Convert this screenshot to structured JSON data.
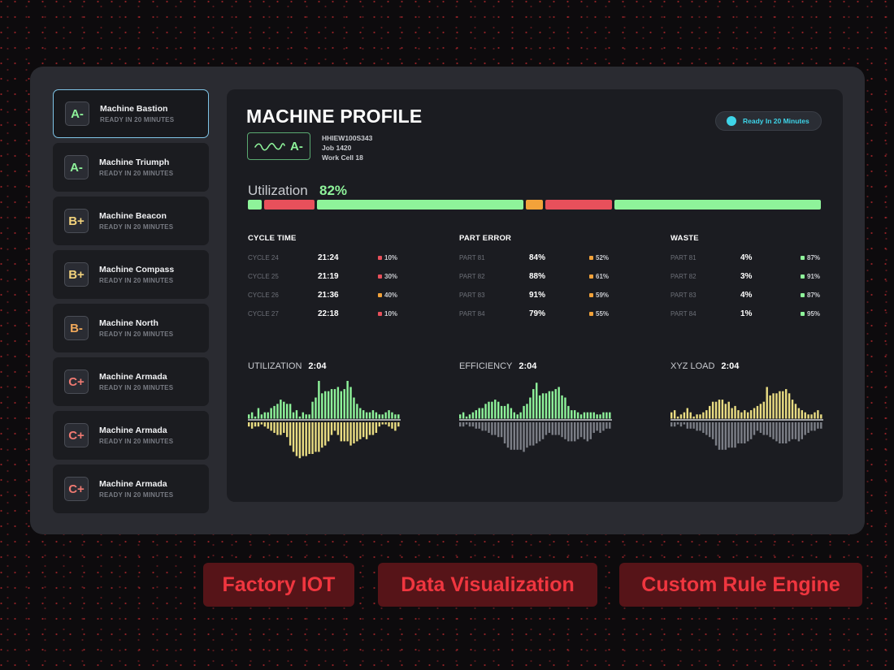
{
  "machines": [
    {
      "grade": "A-",
      "color": "#8ef39a",
      "name": "Machine Bastion",
      "status": "READY IN 20 MINUTES",
      "selected": true
    },
    {
      "grade": "A-",
      "color": "#8ef39a",
      "name": "Machine Triumph",
      "status": "READY IN 20 MINUTES"
    },
    {
      "grade": "B+",
      "color": "#f2d27c",
      "name": "Machine Beacon",
      "status": "READY IN 20 MINUTES"
    },
    {
      "grade": "B+",
      "color": "#f2d27c",
      "name": "Machine Compass",
      "status": "READY IN 20 MINUTES"
    },
    {
      "grade": "B-",
      "color": "#f0a85a",
      "name": "Machine North",
      "status": "READY IN 20 MINUTES"
    },
    {
      "grade": "C+",
      "color": "#f07a72",
      "name": "Machine Armada",
      "status": "READY IN 20 MINUTES"
    },
    {
      "grade": "C+",
      "color": "#f07a72",
      "name": "Machine Armada",
      "status": "READY IN 20 MINUTES"
    },
    {
      "grade": "C+",
      "color": "#f07a72",
      "name": "Machine Armada",
      "status": "READY IN 20 MINUTES"
    }
  ],
  "profile": {
    "title": "MACHINE PROFILE",
    "grade": "A-",
    "grade_color": "#8ef39a",
    "id": "HHIEW100S343",
    "job": "Job 1420",
    "cell": "Work Cell 18",
    "status": "Ready In 20 Minutes",
    "status_color": "#3ed4e8",
    "utilization_label": "Utilization",
    "utilization_value": "82%",
    "utilization_segments": [
      {
        "color": "green",
        "share": 2.5
      },
      {
        "color": "red",
        "share": 9
      },
      {
        "color": "green",
        "share": 37
      },
      {
        "color": "orange",
        "share": 3
      },
      {
        "color": "red",
        "share": 12
      },
      {
        "color": "green",
        "share": 37
      }
    ]
  },
  "colors": {
    "green": "#8ef39a",
    "red": "#e8505b",
    "orange": "#f2a23a",
    "yellow": "#e9dc82",
    "gray": "#7b7e86"
  },
  "stats": [
    {
      "title": "CYCLE TIME",
      "rows": [
        {
          "label": "CYCLE 24",
          "value": "21:24",
          "pct": "10%",
          "color": "red"
        },
        {
          "label": "CYCLE 25",
          "value": "21:19",
          "pct": "30%",
          "color": "red"
        },
        {
          "label": "CYCLE 26",
          "value": "21:36",
          "pct": "40%",
          "color": "orange"
        },
        {
          "label": "CYCLE 27",
          "value": "22:18",
          "pct": "10%",
          "color": "red"
        }
      ]
    },
    {
      "title": "PART ERROR",
      "rows": [
        {
          "label": "PART 81",
          "value": "84%",
          "pct": "52%",
          "color": "orange"
        },
        {
          "label": "PART 82",
          "value": "88%",
          "pct": "61%",
          "color": "orange"
        },
        {
          "label": "PART 83",
          "value": "91%",
          "pct": "59%",
          "color": "orange"
        },
        {
          "label": "PART 84",
          "value": "79%",
          "pct": "55%",
          "color": "orange"
        }
      ]
    },
    {
      "title": "WASTE",
      "rows": [
        {
          "label": "PART 81",
          "value": "4%",
          "pct": "87%",
          "color": "green"
        },
        {
          "label": "PART 82",
          "value": "3%",
          "pct": "91%",
          "color": "green"
        },
        {
          "label": "PART 83",
          "value": "4%",
          "pct": "87%",
          "color": "green"
        },
        {
          "label": "PART 84",
          "value": "1%",
          "pct": "95%",
          "color": "green"
        }
      ]
    }
  ],
  "chart_data": [
    {
      "type": "bar",
      "title": "UTILIZATION",
      "value": "2:04",
      "up_color": "green",
      "down_color": "yellow",
      "up": [
        2,
        3,
        1,
        5,
        2,
        3,
        3,
        5,
        6,
        7,
        9,
        8,
        7,
        7,
        3,
        4,
        1,
        3,
        2,
        2,
        8,
        10,
        18,
        12,
        13,
        13,
        14,
        14,
        15,
        13,
        14,
        18,
        15,
        10,
        7,
        5,
        4,
        3,
        3,
        4,
        3,
        2,
        2,
        3,
        4,
        3,
        2,
        2
      ],
      "down": [
        2,
        3,
        2,
        2,
        1,
        2,
        3,
        4,
        5,
        6,
        6,
        5,
        7,
        11,
        14,
        16,
        17,
        16,
        16,
        15,
        15,
        14,
        14,
        12,
        11,
        9,
        6,
        4,
        6,
        9,
        9,
        9,
        11,
        10,
        9,
        8,
        7,
        8,
        6,
        6,
        5,
        2,
        1,
        1,
        2,
        3,
        4,
        2
      ]
    },
    {
      "type": "bar",
      "title": "EFFICIENCY",
      "value": "2:04",
      "up_color": "green",
      "down_color": "gray",
      "up": [
        2,
        3,
        1,
        2,
        3,
        4,
        5,
        5,
        7,
        8,
        8,
        9,
        8,
        6,
        6,
        7,
        5,
        3,
        2,
        3,
        6,
        7,
        10,
        14,
        17,
        11,
        12,
        12,
        13,
        13,
        14,
        15,
        11,
        10,
        6,
        4,
        4,
        3,
        2,
        3,
        3,
        3,
        3,
        2,
        2,
        3,
        3,
        3
      ],
      "down": [
        2,
        2,
        1,
        2,
        2,
        3,
        3,
        4,
        4,
        5,
        6,
        6,
        7,
        7,
        10,
        12,
        13,
        13,
        13,
        13,
        14,
        12,
        11,
        11,
        10,
        9,
        8,
        6,
        5,
        6,
        6,
        6,
        7,
        8,
        9,
        9,
        9,
        8,
        7,
        8,
        9,
        8,
        5,
        4,
        5,
        4,
        3,
        3
      ]
    },
    {
      "type": "bar",
      "title": "XYZ LOAD",
      "value": "2:04",
      "up_color": "yellow",
      "down_color": "gray",
      "up": [
        3,
        4,
        1,
        2,
        3,
        5,
        3,
        1,
        2,
        2,
        3,
        4,
        6,
        8,
        8,
        9,
        9,
        7,
        8,
        5,
        6,
        4,
        3,
        4,
        3,
        4,
        5,
        6,
        7,
        8,
        15,
        11,
        12,
        12,
        13,
        13,
        14,
        12,
        9,
        7,
        5,
        4,
        3,
        2,
        2,
        3,
        4,
        2
      ],
      "down": [
        2,
        2,
        1,
        2,
        1,
        3,
        3,
        3,
        4,
        4,
        5,
        6,
        7,
        8,
        11,
        13,
        13,
        13,
        12,
        12,
        12,
        10,
        10,
        10,
        9,
        8,
        6,
        4,
        5,
        6,
        6,
        7,
        8,
        9,
        10,
        10,
        10,
        9,
        8,
        8,
        9,
        8,
        6,
        5,
        4,
        4,
        3,
        3
      ]
    }
  ],
  "tags": [
    "Factory IOT",
    "Data Visualization",
    "Custom Rule Engine"
  ]
}
